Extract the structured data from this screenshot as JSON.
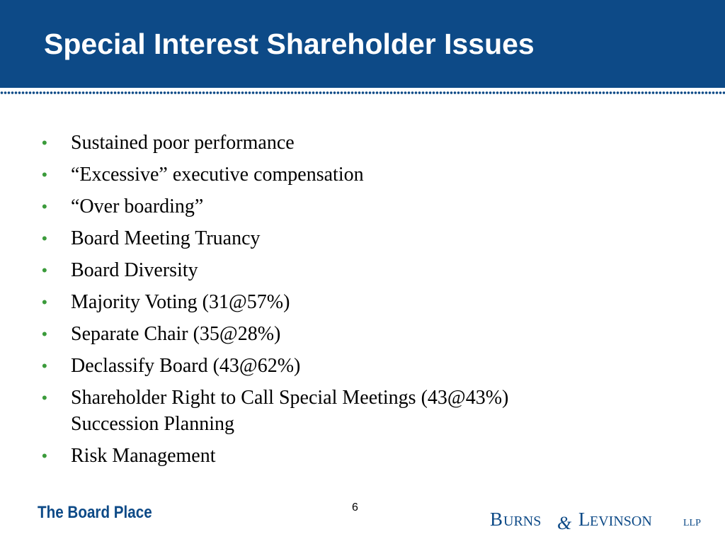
{
  "slide": {
    "title": "Special Interest Shareholder Issues",
    "colors": {
      "title_bar": "#0d4a87",
      "bullet": "#3b9b3b",
      "footer_text": "#0d4a87"
    },
    "bullets": [
      {
        "lines": [
          "Sustained poor performance"
        ]
      },
      {
        "lines": [
          "“Excessive” executive compensation"
        ]
      },
      {
        "lines": [
          "“Over boarding”"
        ]
      },
      {
        "lines": [
          "Board Meeting Truancy"
        ]
      },
      {
        "lines": [
          "Board Diversity"
        ]
      },
      {
        "lines": [
          "Majority Voting (31@57%)"
        ]
      },
      {
        "lines": [
          "Separate Chair (35@28%)"
        ]
      },
      {
        "lines": [
          "Declassify Board (43@62%)"
        ]
      },
      {
        "lines": [
          "Shareholder Right to Call Special Meetings (43@43%)",
          "Succession Planning"
        ]
      },
      {
        "lines": [
          "Risk Management"
        ]
      }
    ],
    "bullet_glyph": "•"
  },
  "footer": {
    "brand": "The Board Place",
    "page_number": "6",
    "firm_logo_text": "BURNS & LEVINSON LLP"
  }
}
